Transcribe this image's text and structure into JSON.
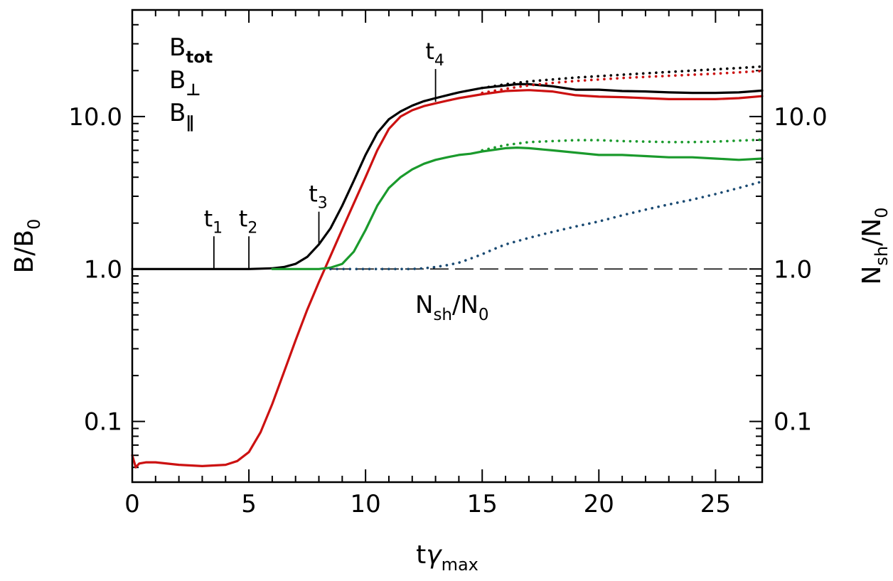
{
  "chart_data": {
    "type": "line",
    "x_label": {
      "main": "t",
      "greek": "γ",
      "sub": "max"
    },
    "y_label_left": {
      "main": "B/B",
      "sub": "0"
    },
    "y_label_right": {
      "main": "N",
      "sub1": "sh",
      "mid": "/N",
      "sub2": "0"
    },
    "xlim": [
      0,
      27
    ],
    "ylim_log": [
      0.04,
      50
    ],
    "x_ticks": [
      0,
      5,
      10,
      15,
      20,
      25
    ],
    "x_tick_labels": [
      "0",
      "5",
      "10",
      "15",
      "20",
      "25"
    ],
    "y_ticks": [
      0.1,
      1.0,
      10.0
    ],
    "y_tick_labels": [
      "0.1",
      "1.0",
      "10.0"
    ],
    "colors": {
      "tot": "#000000",
      "perp": "#cc1111",
      "par": "#1a9a2c",
      "nsh": "#1a4a72"
    },
    "legend": [
      {
        "key": "tot",
        "base": "B",
        "sub": "tot"
      },
      {
        "key": "perp",
        "base": "B",
        "sub": "⊥"
      },
      {
        "key": "par",
        "base": "B",
        "sub": "∥"
      }
    ],
    "nsh_label": {
      "main": "N",
      "sub1": "sh",
      "mid": "/N",
      "sub2": "0"
    },
    "markers": [
      {
        "label": "t",
        "sub": "1",
        "x": 3.5,
        "y": 1.0
      },
      {
        "label": "t",
        "sub": "2",
        "x": 5.0,
        "y": 1.0
      },
      {
        "label": "t",
        "sub": "3",
        "x": 8.0,
        "y": 1.45
      },
      {
        "label": "t",
        "sub": "4",
        "x": 13.0,
        "y": 12.5
      }
    ],
    "reference_line": {
      "y": 1.0,
      "x_start": 8.5,
      "x_end": 27,
      "style": "long-dash"
    },
    "series": [
      {
        "name": "B_tot",
        "color_key": "tot",
        "style": "solid",
        "x": [
          0,
          5,
          6,
          6.5,
          7,
          7.5,
          8,
          8.5,
          9,
          9.5,
          10,
          10.5,
          11,
          11.5,
          12,
          12.5,
          13,
          13.5,
          14,
          15,
          16,
          16.5,
          17,
          18,
          19,
          20,
          21,
          22,
          23,
          24,
          25,
          26,
          27
        ],
        "y": [
          1.0,
          1.0,
          1.01,
          1.03,
          1.08,
          1.2,
          1.45,
          1.85,
          2.6,
          3.8,
          5.6,
          7.8,
          9.6,
          10.8,
          11.8,
          12.6,
          13.2,
          13.8,
          14.4,
          15.4,
          16.0,
          16.3,
          16.3,
          15.8,
          15.0,
          15.0,
          14.7,
          14.6,
          14.4,
          14.3,
          14.3,
          14.4,
          14.8
        ]
      },
      {
        "name": "B_perp",
        "color_key": "perp",
        "style": "solid",
        "x": [
          0,
          0.15,
          0.3,
          0.6,
          1,
          2,
          3,
          4,
          4.5,
          5,
          5.5,
          6,
          6.5,
          7,
          7.5,
          8,
          8.5,
          9,
          9.5,
          10,
          10.5,
          11,
          11.5,
          12,
          12.5,
          13,
          13.5,
          14,
          15,
          16,
          17,
          18,
          19,
          20,
          21,
          22,
          23,
          24,
          25,
          26,
          27
        ],
        "y": [
          0.06,
          0.05,
          0.053,
          0.054,
          0.054,
          0.052,
          0.051,
          0.052,
          0.055,
          0.063,
          0.085,
          0.13,
          0.21,
          0.34,
          0.54,
          0.82,
          1.22,
          1.82,
          2.7,
          4.0,
          6.0,
          8.3,
          10.0,
          11.0,
          11.7,
          12.2,
          12.7,
          13.2,
          14.0,
          14.7,
          14.9,
          14.6,
          13.8,
          13.5,
          13.4,
          13.2,
          13.0,
          13.0,
          13.0,
          13.2,
          13.6
        ]
      },
      {
        "name": "B_par",
        "color_key": "par",
        "style": "solid",
        "x": [
          6,
          7,
          8,
          8.5,
          9,
          9.5,
          10,
          10.5,
          11,
          11.5,
          12,
          12.5,
          13,
          13.5,
          14,
          14.5,
          15,
          16,
          16.5,
          17,
          18,
          19,
          20,
          21,
          22,
          23,
          24,
          25,
          26,
          27
        ],
        "y": [
          1.0,
          1.0,
          1.0,
          1.02,
          1.08,
          1.3,
          1.8,
          2.6,
          3.4,
          4.0,
          4.5,
          4.9,
          5.2,
          5.4,
          5.6,
          5.7,
          5.9,
          6.2,
          6.25,
          6.2,
          6.0,
          5.8,
          5.6,
          5.6,
          5.5,
          5.4,
          5.4,
          5.3,
          5.2,
          5.3
        ]
      },
      {
        "name": "B_tot_dotted",
        "color_key": "tot",
        "style": "dotted",
        "x": [
          15,
          16,
          17,
          18,
          19,
          20,
          21,
          22,
          23,
          24,
          25,
          26,
          27
        ],
        "y": [
          15.4,
          16.3,
          17.0,
          17.5,
          18.0,
          18.4,
          18.8,
          19.2,
          19.6,
          20.0,
          20.4,
          20.8,
          21.3
        ]
      },
      {
        "name": "B_perp_dotted",
        "color_key": "perp",
        "style": "dotted",
        "x": [
          15,
          16,
          17,
          18,
          19,
          20,
          21,
          22,
          23,
          24,
          25,
          26,
          27
        ],
        "y": [
          14.3,
          15.2,
          16.0,
          16.6,
          17.1,
          17.5,
          17.9,
          18.2,
          18.5,
          18.8,
          19.1,
          19.5,
          19.9
        ]
      },
      {
        "name": "B_par_dotted",
        "color_key": "par",
        "style": "dotted",
        "x": [
          15,
          16,
          17,
          18,
          19,
          20,
          21,
          22,
          23,
          24,
          25,
          26,
          27
        ],
        "y": [
          6.0,
          6.5,
          6.8,
          6.9,
          7.0,
          7.0,
          6.9,
          6.85,
          6.8,
          6.8,
          6.85,
          6.95,
          7.05
        ]
      },
      {
        "name": "N_sh/N_0",
        "color_key": "nsh",
        "style": "dotted",
        "x": [
          8.5,
          10,
          11,
          12,
          12.5,
          13,
          13.5,
          14,
          14.5,
          15,
          15.5,
          16,
          17,
          18,
          19,
          20,
          21,
          22,
          23,
          24,
          25,
          26,
          27
        ],
        "y": [
          1.0,
          1.0,
          1.0,
          1.0,
          1.01,
          1.03,
          1.06,
          1.1,
          1.17,
          1.25,
          1.35,
          1.45,
          1.6,
          1.75,
          1.9,
          2.05,
          2.25,
          2.45,
          2.65,
          2.85,
          3.1,
          3.4,
          3.75
        ]
      }
    ]
  }
}
